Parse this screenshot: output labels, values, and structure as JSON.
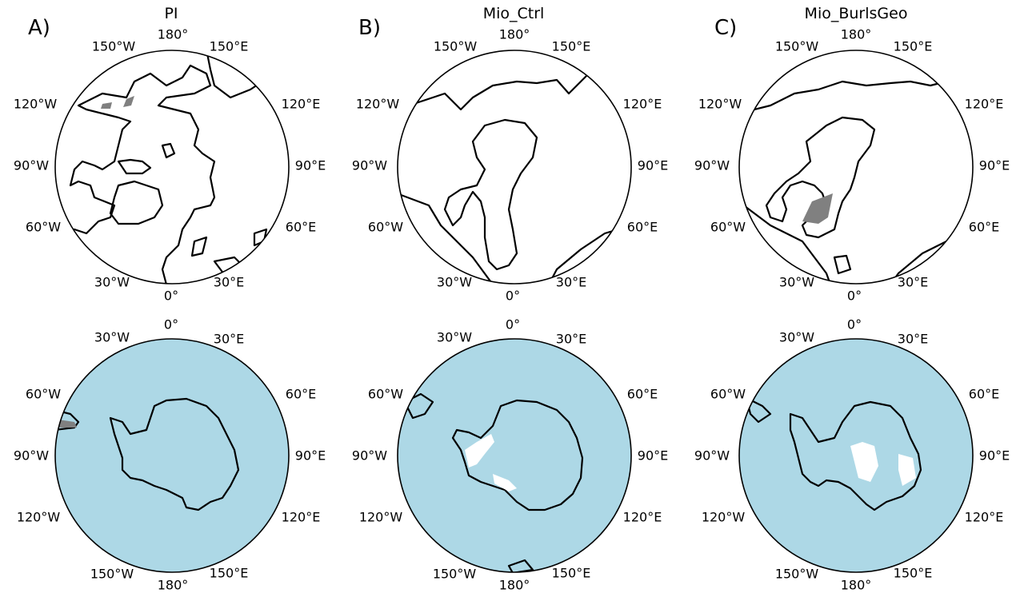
{
  "colors": {
    "ocean": "#add8e6",
    "ice": "#808080",
    "land": "#ffffff",
    "coastline": "#000000"
  },
  "columns": [
    {
      "letter": "A)",
      "title": "PI"
    },
    {
      "letter": "B)",
      "title": "Mio_Ctrl"
    },
    {
      "letter": "C)",
      "title": "Mio_BurlsGeo"
    }
  ],
  "north_labels": {
    "top": "180°",
    "bottom": "0°",
    "ul1": "150°W",
    "ur1": "150°E",
    "ul2": "120°W",
    "ur2": "120°E",
    "l3": "90°W",
    "r3": "90°E",
    "ll2": "60°W",
    "lr2": "60°E",
    "ll1": "30°W",
    "lr1": "30°E"
  },
  "south_labels": {
    "top": "0°",
    "bottom": "180°",
    "ul1": "30°W",
    "ur1": "30°E",
    "ul2": "60°W",
    "ur2": "60°E",
    "l3": "90°W",
    "r3": "90°E",
    "ll2": "120°W",
    "lr2": "120°E",
    "ll1": "150°W",
    "lr1": "150°E"
  }
}
